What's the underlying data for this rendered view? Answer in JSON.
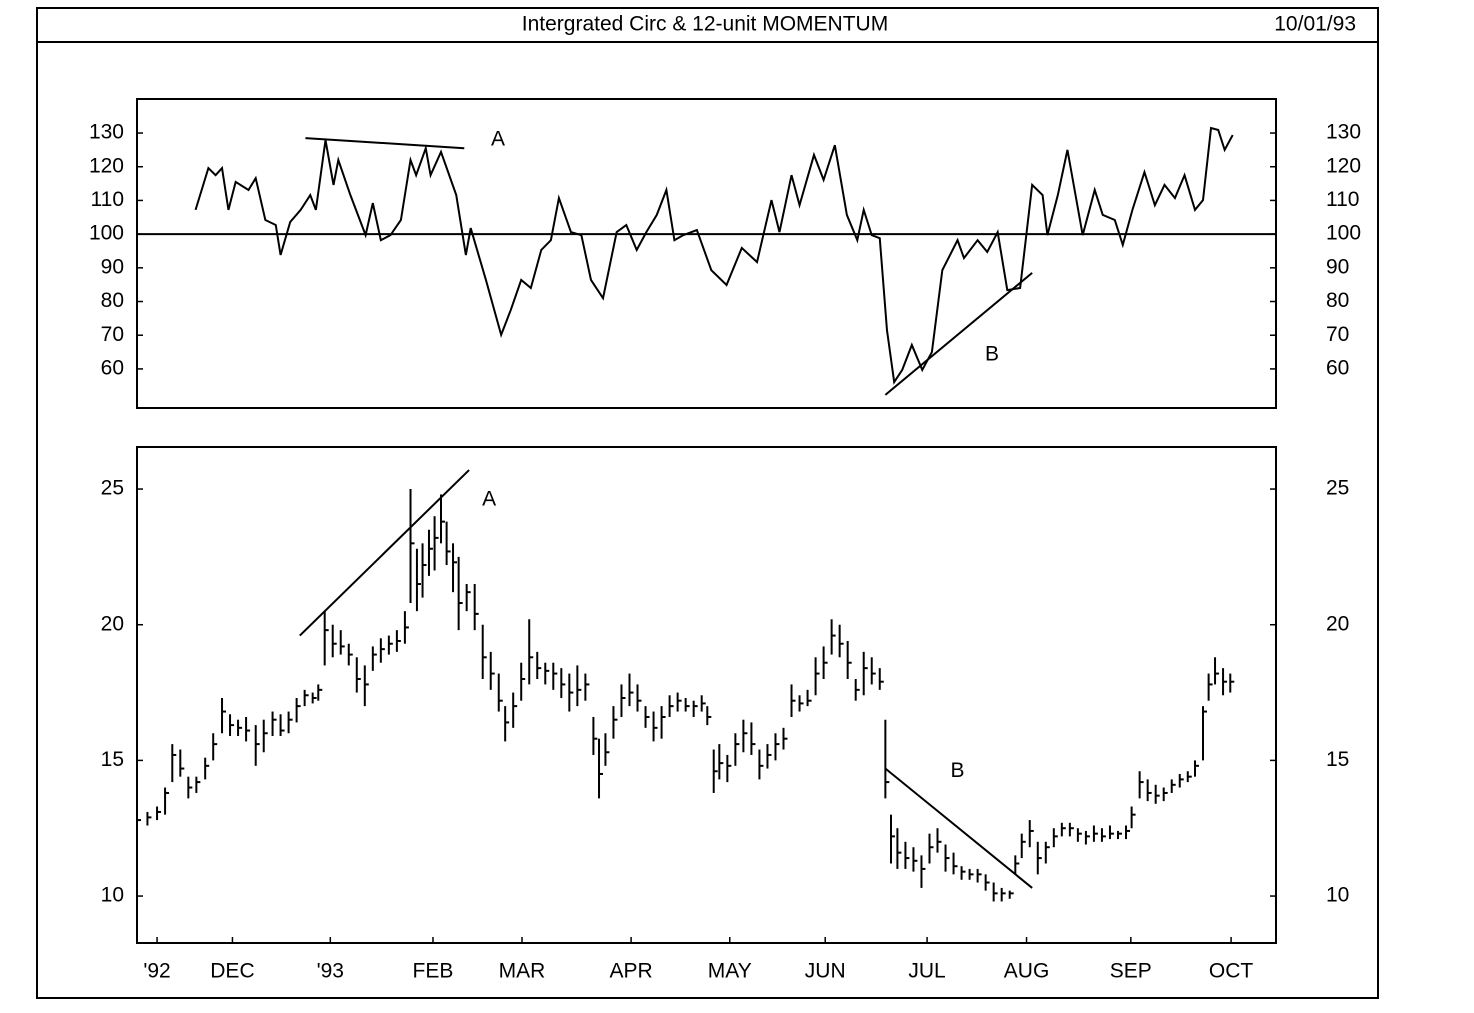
{
  "header": {
    "title": "Intergrated Circ & 12-unit MOMENTUM",
    "date": "10/01/93"
  },
  "chart_data": [
    {
      "type": "line",
      "reference_line": 100,
      "xlim": [
        0,
        142
      ],
      "ylim": [
        48.4,
        140.1
      ],
      "yticks": [
        60,
        70,
        80,
        90,
        100,
        110,
        120,
        130
      ],
      "x": [
        7.3,
        8.9,
        9.8,
        10.6,
        11.4,
        12.3,
        13.9,
        14.8,
        16,
        17.3,
        17.9,
        19.1,
        20.4,
        21.6,
        22.3,
        23.5,
        24.5,
        25.1,
        26.6,
        28.5,
        29.4,
        30.4,
        31.6,
        32.9,
        34.1,
        34.8,
        36,
        36.6,
        37.9,
        39.8,
        41,
        41.6,
        43.5,
        45.4,
        46.6,
        47.9,
        49.1,
        50.4,
        51.6,
        52.6,
        54.1,
        55.4,
        56.6,
        58.1,
        59.8,
        61,
        62.3,
        63.5,
        64.8,
        66,
        67,
        68.1,
        69.8,
        71.6,
        73.5,
        75.4,
        77.3,
        79.1,
        80.1,
        81.6,
        82.6,
        84.4,
        85.6,
        87,
        88.5,
        89.8,
        90.6,
        91.6,
        92.6,
        93.5,
        94.4,
        95.4,
        96.6,
        97.9,
        99.1,
        100.4,
        102.3,
        103.1,
        104.8,
        106,
        107.3,
        108.5,
        110.1,
        111.6,
        112.9,
        113.5,
        114.8,
        116,
        117.9,
        119.4,
        120.4,
        121.9,
        122.9,
        124.1,
        125.6,
        126.9,
        128.1,
        129.4,
        130.6,
        131.9,
        132.9,
        133.9,
        134.8,
        135.6,
        136.6
      ],
      "values": [
        107.2,
        119.6,
        117.5,
        119.6,
        107.2,
        115.5,
        113.1,
        116.6,
        104.2,
        102.7,
        93.8,
        103.6,
        107.2,
        111.6,
        107.2,
        127.9,
        114.6,
        122,
        111.6,
        99.7,
        109.2,
        98.2,
        99.7,
        104.2,
        122,
        117.5,
        125.5,
        117.5,
        124.4,
        111.6,
        93.8,
        101.8,
        86.4,
        70.1,
        77.5,
        86.4,
        84,
        95.3,
        98.2,
        110.7,
        100.6,
        99.7,
        86.4,
        81,
        100.6,
        102.7,
        95.3,
        100.6,
        105.7,
        113.1,
        98.2,
        99.7,
        101.2,
        89.3,
        84.9,
        95.9,
        91.7,
        110.1,
        100.6,
        117.5,
        108.6,
        123.5,
        116.1,
        126.4,
        105.7,
        98.2,
        107.2,
        99.7,
        98.8,
        71.5,
        56.1,
        59.7,
        67.1,
        59.7,
        65,
        89.3,
        98.2,
        92.9,
        98.2,
        94.7,
        100.6,
        83.4,
        84,
        114.6,
        111.6,
        99.7,
        111.6,
        125,
        99.7,
        113.1,
        105.7,
        104.2,
        96.8,
        107.2,
        118.4,
        108.6,
        114.6,
        110.7,
        117.5,
        107.2,
        110.1,
        131.5,
        130.9,
        125,
        129.4
      ],
      "trendlines": [
        {
          "x": [
            21,
            40.8
          ],
          "y": [
            128.5,
            125.5
          ]
        },
        {
          "x": [
            93.3,
            111.6
          ],
          "y": [
            52.3,
            88.5
          ]
        }
      ],
      "annotations": [
        {
          "text": "A",
          "x": 45,
          "y": 127.9
        },
        {
          "text": "B",
          "x": 106.6,
          "y": 64.1
        }
      ]
    },
    {
      "type": "ohlc",
      "xlim": [
        0,
        142
      ],
      "ylim": [
        8.27,
        26.55
      ],
      "yticks": [
        10,
        15,
        20,
        25
      ],
      "xticks": [
        {
          "value": 2.5,
          "label": "'92"
        },
        {
          "value": 11.9,
          "label": "DEC"
        },
        {
          "value": 24.1,
          "label": "'93"
        },
        {
          "value": 36.9,
          "label": "FEB"
        },
        {
          "value": 48,
          "label": "MAR"
        },
        {
          "value": 61.6,
          "label": "APR"
        },
        {
          "value": 73.9,
          "label": "MAY"
        },
        {
          "value": 85.8,
          "label": "JUN"
        },
        {
          "value": 98.5,
          "label": "JUL"
        },
        {
          "value": 110.9,
          "label": "AUG"
        },
        {
          "value": 123.9,
          "label": "SEP"
        },
        {
          "value": 136.4,
          "label": "OCT"
        }
      ],
      "x": [
        0,
        1.3,
        2.5,
        3.5,
        4.4,
        5.4,
        6.4,
        7.4,
        8.5,
        9.5,
        10.6,
        11.6,
        12.6,
        13.6,
        14.8,
        15.8,
        16.9,
        17.9,
        18.9,
        19.9,
        20.9,
        21.9,
        22.6,
        23.4,
        24.4,
        25.4,
        26.4,
        27.4,
        28.4,
        29.4,
        30.4,
        31.4,
        32.4,
        33.4,
        34.1,
        34.9,
        35.6,
        36.4,
        37.1,
        37.9,
        38.6,
        39.4,
        40.1,
        41.1,
        42.1,
        43.1,
        44.1,
        45.1,
        45.9,
        46.9,
        47.9,
        48.9,
        49.9,
        50.9,
        51.9,
        52.9,
        53.9,
        54.9,
        55.9,
        56.9,
        57.6,
        58.4,
        59.4,
        60.4,
        61.4,
        62.4,
        63.4,
        64.4,
        65.4,
        66.4,
        67.4,
        68.4,
        69.4,
        70.4,
        71.1,
        71.9,
        72.6,
        73.6,
        74.6,
        75.6,
        76.6,
        77.6,
        78.6,
        79.6,
        80.6,
        81.6,
        82.6,
        83.6,
        84.6,
        85.6,
        86.6,
        87.6,
        88.6,
        89.6,
        90.6,
        91.6,
        92.6,
        93.3,
        94,
        94.8,
        95.8,
        96.8,
        97.8,
        98.8,
        99.8,
        100.8,
        101.8,
        102.8,
        103.8,
        104.8,
        105.8,
        106.8,
        107.8,
        108.8,
        109.5,
        110.3,
        111.3,
        112.3,
        113.3,
        114.3,
        115.3,
        116.3,
        117.3,
        118.3,
        119.3,
        120.3,
        121.3,
        122.3,
        123.3,
        124,
        125,
        126,
        127,
        128,
        129,
        130,
        131,
        131.9,
        132.9,
        133.6,
        134.4,
        135.4,
        136.3
      ],
      "high": [
        13.1,
        13.1,
        13.3,
        14.0,
        15.6,
        15.4,
        14.4,
        14.4,
        15.1,
        16.0,
        17.3,
        16.7,
        16.5,
        16.6,
        16.3,
        16.5,
        16.8,
        16.7,
        16.8,
        17.3,
        17.6,
        17.5,
        17.8,
        20.5,
        20.0,
        19.8,
        19.3,
        18.8,
        18.5,
        19.2,
        19.5,
        19.6,
        19.8,
        20.5,
        25.0,
        22.8,
        23.0,
        23.5,
        24.0,
        24.8,
        23.8,
        23.0,
        22.5,
        21.5,
        21.5,
        20.0,
        19.0,
        18.2,
        17.0,
        17.5,
        18.6,
        20.2,
        19.0,
        18.6,
        18.6,
        18.4,
        18.2,
        18.5,
        18.2,
        16.6,
        15.8,
        16.0,
        17.0,
        17.8,
        18.2,
        17.8,
        17.0,
        16.8,
        17.0,
        17.4,
        17.5,
        17.3,
        17.2,
        17.4,
        17.0,
        15.4,
        15.6,
        15.2,
        16.0,
        16.5,
        16.4,
        15.4,
        15.6,
        16.0,
        16.2,
        17.8,
        17.4,
        17.6,
        18.8,
        19.2,
        20.2,
        20.0,
        19.4,
        18.0,
        19.0,
        18.8,
        18.4,
        16.5,
        13.0,
        12.5,
        12.0,
        11.8,
        11.5,
        12.3,
        12.5,
        11.9,
        11.6,
        11.1,
        11.0,
        11.0,
        10.8,
        10.5,
        10.3,
        10.2,
        11.5,
        12.3,
        12.8,
        12.0,
        12.0,
        12.5,
        12.7,
        12.7,
        12.5,
        12.4,
        12.6,
        12.5,
        12.6,
        12.4,
        12.6,
        13.3,
        14.6,
        14.3,
        14.1,
        14.0,
        14.3,
        14.5,
        14.6,
        15.0,
        17.0,
        18.2,
        18.8,
        18.4,
        18.2
      ],
      "low": [
        12.5,
        12.6,
        12.8,
        13.0,
        14.2,
        14.4,
        13.6,
        13.8,
        14.3,
        15.0,
        16.0,
        15.9,
        15.9,
        15.7,
        14.8,
        15.3,
        15.9,
        15.9,
        16.0,
        16.4,
        17.0,
        17.1,
        17.2,
        18.5,
        18.8,
        18.9,
        18.5,
        17.5,
        17.0,
        18.3,
        18.6,
        18.9,
        19.0,
        19.3,
        20.8,
        20.5,
        21.0,
        21.8,
        22.0,
        23.0,
        22.2,
        21.2,
        19.8,
        20.5,
        19.8,
        18.0,
        17.6,
        16.8,
        15.7,
        16.2,
        17.2,
        17.8,
        18.0,
        17.8,
        17.6,
        17.3,
        16.8,
        17.0,
        17.2,
        15.2,
        13.6,
        14.8,
        15.8,
        16.6,
        17.0,
        16.8,
        16.2,
        15.7,
        15.8,
        16.6,
        16.8,
        16.8,
        16.6,
        16.8,
        16.3,
        13.8,
        14.3,
        14.2,
        14.8,
        15.3,
        15.2,
        14.3,
        14.7,
        15.0,
        15.4,
        16.6,
        16.8,
        17.0,
        17.4,
        18.0,
        18.9,
        18.8,
        18.0,
        17.2,
        17.4,
        17.8,
        17.6,
        13.6,
        11.2,
        11.0,
        11.0,
        10.9,
        10.3,
        11.2,
        11.6,
        10.9,
        10.8,
        10.6,
        10.6,
        10.5,
        10.2,
        9.8,
        9.8,
        9.9,
        10.8,
        11.4,
        11.8,
        10.8,
        11.2,
        11.8,
        12.2,
        12.2,
        12.0,
        11.9,
        12.0,
        12.0,
        12.1,
        12.1,
        12.1,
        12.5,
        13.6,
        13.5,
        13.4,
        13.5,
        13.8,
        14.0,
        14.2,
        14.4,
        15.0,
        17.2,
        17.8,
        17.4,
        17.5
      ],
      "close": [
        12.8,
        12.9,
        13.1,
        13.8,
        15.2,
        14.7,
        14.0,
        14.2,
        14.8,
        15.6,
        16.8,
        16.3,
        16.2,
        16.1,
        15.6,
        16.0,
        16.5,
        16.1,
        16.5,
        17.0,
        17.4,
        17.3,
        17.6,
        19.8,
        19.3,
        19.2,
        18.9,
        18.0,
        17.8,
        18.9,
        19.1,
        19.3,
        19.4,
        19.9,
        23.0,
        21.5,
        22.2,
        22.8,
        23.2,
        23.8,
        22.7,
        22.3,
        20.8,
        21.2,
        20.4,
        18.8,
        18.2,
        17.2,
        16.4,
        17.0,
        18.0,
        18.8,
        18.4,
        18.3,
        18.2,
        17.8,
        17.5,
        17.6,
        17.8,
        15.8,
        14.5,
        15.3,
        16.5,
        17.3,
        17.5,
        17.2,
        16.6,
        16.2,
        16.6,
        17.0,
        17.2,
        17.0,
        17.0,
        17.1,
        16.6,
        14.6,
        14.9,
        14.8,
        15.6,
        16.0,
        15.6,
        14.8,
        15.2,
        15.6,
        15.8,
        17.2,
        17.1,
        17.2,
        18.2,
        18.6,
        19.6,
        19.3,
        18.6,
        17.6,
        18.4,
        18.2,
        17.9,
        14.2,
        12.2,
        11.6,
        11.4,
        11.3,
        11.0,
        11.8,
        12.0,
        11.4,
        11.1,
        10.9,
        10.8,
        10.8,
        10.5,
        10.1,
        10.1,
        10.1,
        11.2,
        12.0,
        12.4,
        11.4,
        11.8,
        12.2,
        12.5,
        12.5,
        12.3,
        12.2,
        12.3,
        12.2,
        12.3,
        12.3,
        12.4,
        13.0,
        14.2,
        13.8,
        13.7,
        13.8,
        14.1,
        14.3,
        14.4,
        14.8,
        16.8,
        17.8,
        18.2,
        17.9,
        17.9
      ],
      "trendlines": [
        {
          "x": [
            20.3,
            41.4
          ],
          "y": [
            19.6,
            25.7
          ]
        },
        {
          "x": [
            93.3,
            111.6
          ],
          "y": [
            14.7,
            10.3
          ]
        }
      ],
      "annotations": [
        {
          "text": "A",
          "x": 43.9,
          "y": 24.6
        },
        {
          "text": "B",
          "x": 102.3,
          "y": 14.6
        }
      ]
    }
  ]
}
